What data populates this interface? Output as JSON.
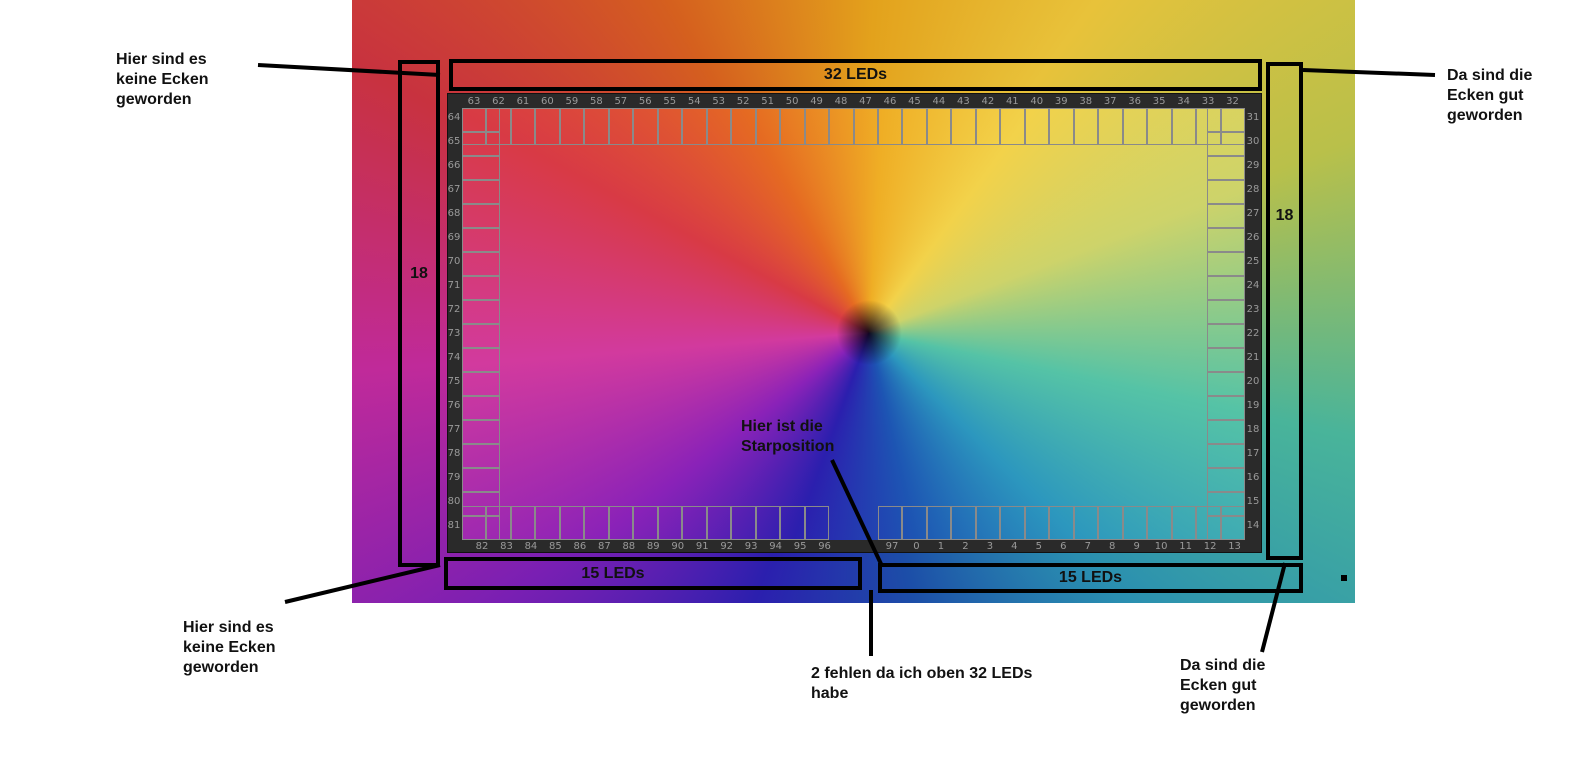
{
  "leds": {
    "top": [
      "63",
      "62",
      "61",
      "60",
      "59",
      "58",
      "57",
      "56",
      "55",
      "54",
      "53",
      "52",
      "51",
      "50",
      "49",
      "48",
      "47",
      "46",
      "45",
      "44",
      "43",
      "42",
      "41",
      "40",
      "39",
      "38",
      "37",
      "36",
      "35",
      "34",
      "33",
      "32"
    ],
    "left": [
      "64",
      "65",
      "66",
      "67",
      "68",
      "69",
      "70",
      "71",
      "72",
      "73",
      "74",
      "75",
      "76",
      "77",
      "78",
      "79",
      "80",
      "81"
    ],
    "right": [
      "31",
      "30",
      "29",
      "28",
      "27",
      "26",
      "25",
      "24",
      "23",
      "22",
      "21",
      "20",
      "19",
      "18",
      "17",
      "16",
      "15",
      "14"
    ],
    "bottom_left": [
      "82",
      "83",
      "84",
      "85",
      "86",
      "87",
      "88",
      "89",
      "90",
      "91",
      "92",
      "93",
      "94",
      "95",
      "96"
    ],
    "bottom_right": [
      "97",
      "0",
      "1",
      "2",
      "3",
      "4",
      "5",
      "6",
      "7",
      "8",
      "9",
      "10",
      "11",
      "12",
      "13"
    ]
  },
  "annotations": {
    "top_box": "32 LEDs",
    "left_box": "18",
    "right_box": "18",
    "bottom_left_box": "15 LEDs",
    "bottom_right_box": "15 LEDs",
    "note_top_left": "Hier sind es keine Ecken geworden",
    "note_top_right": "Da sind die Ecken gut geworden",
    "note_bottom_left": "Hier sind es keine Ecken geworden",
    "note_bottom_right": "Da sind die Ecken gut geworden",
    "note_missing": "2 fehlen da ich oben 32 LEDs habe",
    "note_start": "Hier ist die Starposition"
  }
}
